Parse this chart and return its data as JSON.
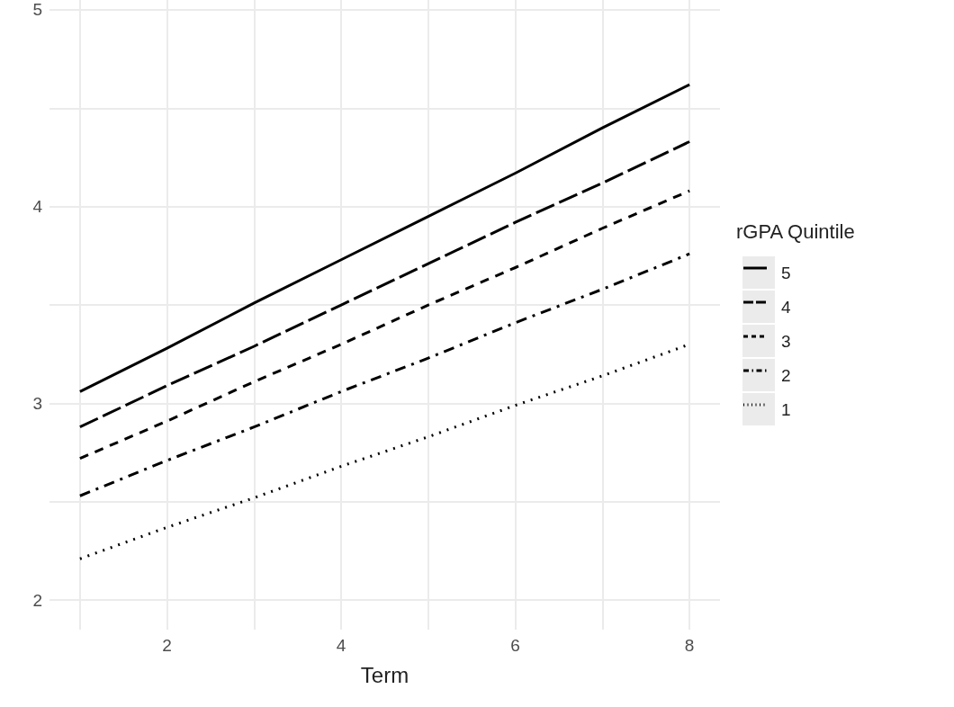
{
  "chart_data": {
    "type": "line",
    "xlabel": "Term",
    "legend_title": "rGPA Quintile",
    "legend": "right",
    "grid": true,
    "marker": "none",
    "x": [
      1,
      2,
      3,
      4,
      5,
      6,
      7,
      8
    ],
    "xlim": [
      0.65,
      8.35
    ],
    "xticks": [
      {
        "value": 1,
        "label": null
      },
      2,
      {
        "value": 3,
        "label": null
      },
      4,
      {
        "value": 5,
        "label": null
      },
      6,
      {
        "value": 7,
        "label": null
      },
      8
    ],
    "ylim": [
      1.85,
      5.05
    ],
    "yticks": [
      2,
      {
        "value": 2.5,
        "label": null
      },
      3,
      {
        "value": 3.5,
        "label": null
      },
      4,
      {
        "value": 4.5,
        "label": null
      },
      5
    ],
    "series": [
      {
        "name": "5",
        "color": "#000000",
        "line_style": "solid",
        "values": [
          3.06,
          3.28,
          3.51,
          3.73,
          3.95,
          4.17,
          4.4,
          4.62
        ]
      },
      {
        "name": "4",
        "color": "#000000",
        "line_style": "longdash",
        "values": [
          2.88,
          3.09,
          3.29,
          3.5,
          3.71,
          3.92,
          4.12,
          4.33
        ]
      },
      {
        "name": "3",
        "color": "#000000",
        "line_style": "dashed",
        "values": [
          2.72,
          2.91,
          3.11,
          3.3,
          3.5,
          3.69,
          3.89,
          4.08
        ]
      },
      {
        "name": "2",
        "color": "#000000",
        "line_style": "dashdot",
        "values": [
          2.53,
          2.71,
          2.88,
          3.06,
          3.23,
          3.41,
          3.58,
          3.76
        ]
      },
      {
        "name": "1",
        "color": "#000000",
        "line_style": "dotted",
        "values": [
          2.21,
          2.37,
          2.52,
          2.68,
          2.83,
          2.99,
          3.14,
          3.3
        ]
      }
    ]
  }
}
